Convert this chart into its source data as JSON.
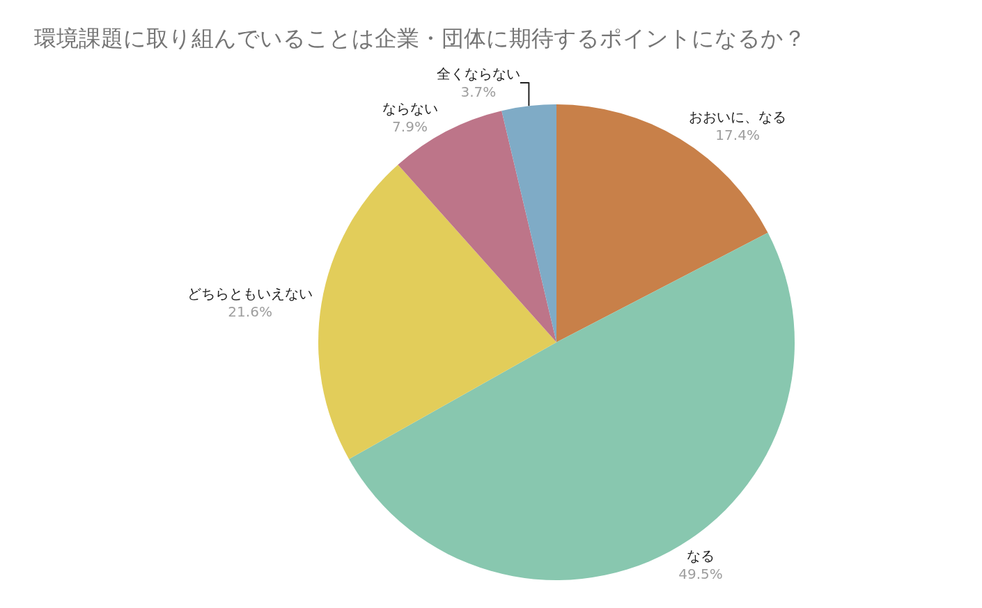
{
  "chart_data": {
    "type": "pie",
    "title": "環境課題に取り組んでいることは企業・団体に期待するポイントになるか？",
    "categories": [
      "おおいに、なる",
      "なる",
      "どちらともいえない",
      "ならない",
      "全くならない"
    ],
    "values": [
      17.4,
      49.5,
      21.6,
      7.9,
      3.7
    ],
    "value_labels": [
      "17.4%",
      "49.5%",
      "21.6%",
      "7.9%",
      "3.7%"
    ],
    "colors": [
      "#c88049",
      "#88c7af",
      "#e2cd5a",
      "#bd7589",
      "#7fabc6"
    ],
    "legend": false
  }
}
